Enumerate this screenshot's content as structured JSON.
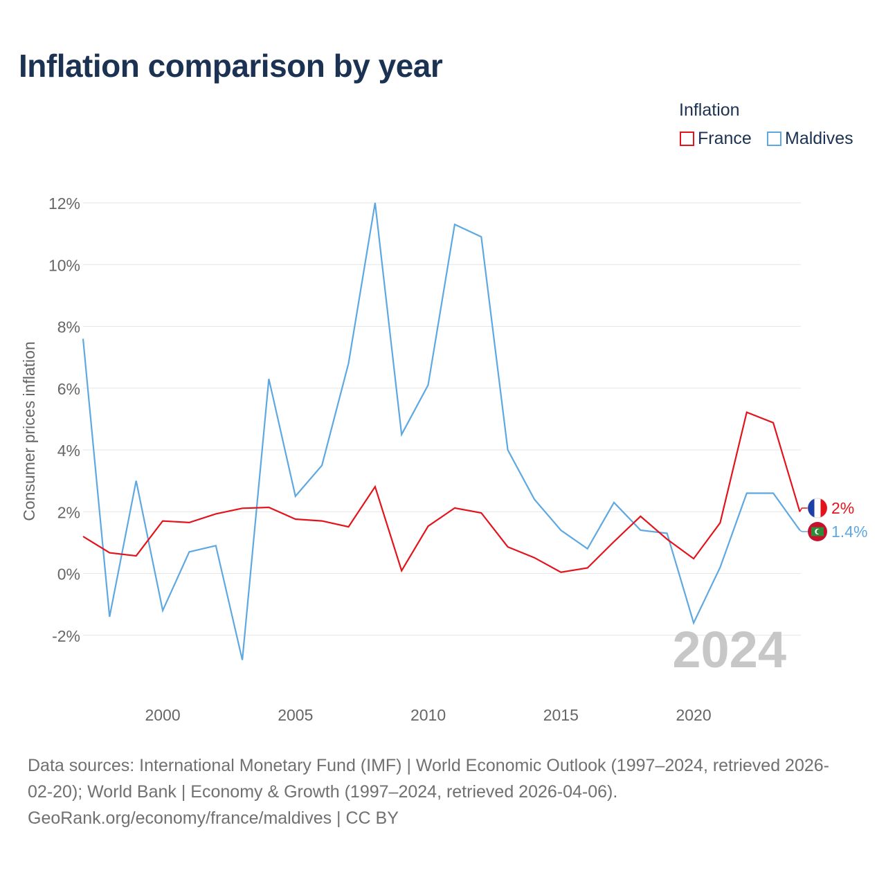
{
  "title": "Inflation comparison by year",
  "legend": {
    "title": "Inflation",
    "items": [
      {
        "label": "France",
        "color": "#e3131b"
      },
      {
        "label": "Maldives",
        "color": "#5ea8e2"
      }
    ]
  },
  "chart_data": {
    "type": "line",
    "title": "Inflation comparison by year",
    "xlabel": "",
    "ylabel": "Consumer prices inflation",
    "xlim": [
      1997,
      2024
    ],
    "ylim": [
      -4,
      12.2
    ],
    "x_ticks": [
      2000,
      2005,
      2010,
      2015,
      2020
    ],
    "y_ticks": [
      -2,
      0,
      2,
      4,
      6,
      8,
      10,
      12
    ],
    "y_tick_labels": [
      "-2%",
      "0%",
      "2%",
      "4%",
      "6%",
      "8%",
      "10%",
      "12%"
    ],
    "grid": true,
    "x": [
      1997,
      1998,
      1999,
      2000,
      2001,
      2002,
      2003,
      2004,
      2005,
      2006,
      2007,
      2008,
      2009,
      2010,
      2011,
      2012,
      2013,
      2014,
      2015,
      2016,
      2017,
      2018,
      2019,
      2020,
      2021,
      2022,
      2023,
      2024
    ],
    "series": [
      {
        "name": "France",
        "color": "#e3131b",
        "values": [
          1.2,
          0.67,
          0.57,
          1.7,
          1.65,
          1.93,
          2.11,
          2.14,
          1.76,
          1.7,
          1.51,
          2.81,
          0.09,
          1.53,
          2.12,
          1.96,
          0.86,
          0.51,
          0.04,
          0.18,
          1.03,
          1.85,
          1.11,
          0.48,
          1.64,
          5.22,
          4.88,
          2.0
        ],
        "end_label": "2%"
      },
      {
        "name": "Maldives",
        "color": "#5ea8e2",
        "values": [
          7.6,
          -1.4,
          3.0,
          -1.2,
          0.7,
          0.9,
          -2.8,
          6.3,
          2.5,
          3.5,
          6.8,
          12.0,
          4.5,
          6.1,
          11.3,
          10.9,
          4.0,
          2.4,
          1.4,
          0.8,
          2.3,
          1.4,
          1.3,
          -1.6,
          0.2,
          2.6,
          2.6,
          1.4
        ],
        "end_label": "1.4%"
      }
    ],
    "annotation": "2024"
  },
  "source": {
    "lines": [
      "Data sources: International Monetary Fund (IMF) | World Economic Outlook (1997–2024, retrieved 2026-",
      "02-20); World Bank | Economy & Growth (1997–2024, retrieved 2026-04-06).",
      "GeoRank.org/economy/france/maldives | CC BY"
    ]
  }
}
